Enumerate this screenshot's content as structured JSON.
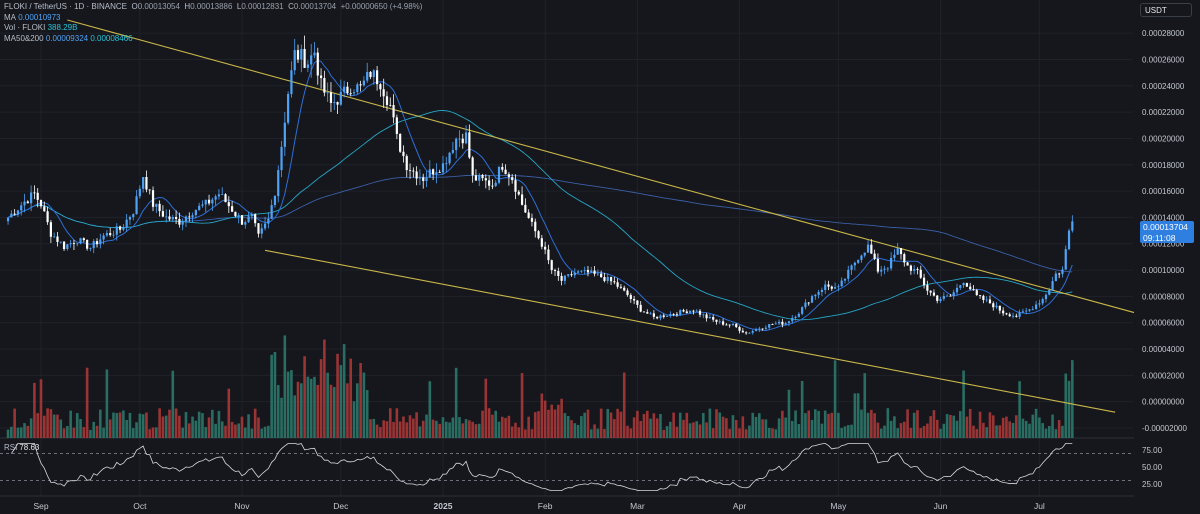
{
  "header": {
    "symbol": "FLOKI / TetherUS · 1D · BINANCE",
    "o_label": "O",
    "o_value": "0.00013054",
    "h_label": "H",
    "h_value": "0.00013886",
    "l_label": "L",
    "l_value": "0.00012831",
    "c_label": "C",
    "c_value": "0.00013704",
    "change": "+0.00000650 (+4.98%)",
    "ma_label": "MA",
    "ma_value": "0.00010973",
    "vol_label": "Vol · FLOKI",
    "vol_value": "388.29B",
    "ma50_label": "MA50&200",
    "ma50_value": "0.00009324",
    "ma200_value": "0.00008466"
  },
  "unit": "USDT",
  "price_tag": {
    "price": "0.00013704",
    "countdown": "09:11:08"
  },
  "rsi": {
    "label": "RSI",
    "value": "78.63"
  },
  "colors": {
    "up": "#4fa3f7",
    "down": "#ffffff",
    "trend": "#c9b64a",
    "ma": "#2e6fd6",
    "ma50": "#26a6c6",
    "ma200": "#3b5fa8",
    "vol_up": "#2e7d6e",
    "vol_down": "#b23a3a",
    "rsi": "#d7d9de"
  },
  "chart_data": {
    "type": "candlestick",
    "y_axis_ticks": [
      "0.00028000",
      "0.00026000",
      "0.00024000",
      "0.00022000",
      "0.00020000",
      "0.00018000",
      "0.00016000",
      "0.00014000",
      "0.00012000",
      "0.00010000",
      "0.00008000",
      "0.00006000",
      "0.00004000",
      "0.00002000",
      "0.00000000",
      "-0.00002000"
    ],
    "ylim": [
      -2e-05,
      0.00029
    ],
    "x_axis_ticks": [
      {
        "label": "Sep",
        "day": 0
      },
      {
        "label": "Oct",
        "day": 30
      },
      {
        "label": "Nov",
        "day": 61
      },
      {
        "label": "Dec",
        "day": 91
      },
      {
        "label": "2025",
        "day": 122
      },
      {
        "label": "Feb",
        "day": 153
      },
      {
        "label": "Mar",
        "day": 181
      },
      {
        "label": "Apr",
        "day": 212
      },
      {
        "label": "May",
        "day": 242
      },
      {
        "label": "Jun",
        "day": 273
      },
      {
        "label": "Jul",
        "day": 303
      }
    ],
    "price_closes": [
      [
        -10,
        0.00014
      ],
      [
        -5,
        0.000152
      ],
      [
        -2,
        0.000158
      ],
      [
        0,
        0.00015
      ],
      [
        3,
        0.000128
      ],
      [
        7,
        0.000118
      ],
      [
        11,
        0.000123
      ],
      [
        15,
        0.000117
      ],
      [
        19,
        0.000126
      ],
      [
        24,
        0.000131
      ],
      [
        28,
        0.000145
      ],
      [
        31,
        0.000172
      ],
      [
        34,
        0.00015
      ],
      [
        38,
        0.00014
      ],
      [
        42,
        0.000137
      ],
      [
        46,
        0.000145
      ],
      [
        50,
        0.00015
      ],
      [
        54,
        0.000158
      ],
      [
        58,
        0.000146
      ],
      [
        61,
        0.000137
      ],
      [
        64,
        0.00014
      ],
      [
        66,
        0.000125
      ],
      [
        69,
        0.000138
      ],
      [
        71,
        0.00016
      ],
      [
        73,
        0.000195
      ],
      [
        75,
        0.000235
      ],
      [
        77,
        0.000264
      ],
      [
        79,
        0.000262
      ],
      [
        81,
        0.000258
      ],
      [
        83,
        0.000266
      ],
      [
        85,
        0.00024
      ],
      [
        88,
        0.000226
      ],
      [
        91,
        0.000232
      ],
      [
        94,
        0.00024
      ],
      [
        97,
        0.000238
      ],
      [
        100,
        0.00025
      ],
      [
        103,
        0.000243
      ],
      [
        106,
        0.000225
      ],
      [
        108,
        0.0002
      ],
      [
        111,
        0.00018
      ],
      [
        113,
        0.000175
      ],
      [
        116,
        0.00017
      ],
      [
        119,
        0.000176
      ],
      [
        122,
        0.00018
      ],
      [
        126,
        0.0002
      ],
      [
        129,
        0.000202
      ],
      [
        131,
        0.00017
      ],
      [
        134,
        0.000168
      ],
      [
        137,
        0.000165
      ],
      [
        140,
        0.00018
      ],
      [
        143,
        0.00017
      ],
      [
        146,
        0.00015
      ],
      [
        149,
        0.000134
      ],
      [
        152,
        0.00012
      ],
      [
        155,
        0.0001
      ],
      [
        158,
        9.2e-05
      ],
      [
        162,
        9.8e-05
      ],
      [
        166,
        9.8e-05
      ],
      [
        170,
        9.5e-05
      ],
      [
        174,
        9e-05
      ],
      [
        178,
        8.1e-05
      ],
      [
        182,
        7e-05
      ],
      [
        186,
        6.4e-05
      ],
      [
        190,
        6.6e-05
      ],
      [
        194,
        6.8e-05
      ],
      [
        198,
        7e-05
      ],
      [
        202,
        6.4e-05
      ],
      [
        206,
        6e-05
      ],
      [
        210,
        5.8e-05
      ],
      [
        214,
        5.2e-05
      ],
      [
        218,
        5.6e-05
      ],
      [
        222,
        5.9e-05
      ],
      [
        226,
        6e-05
      ],
      [
        230,
        6.8e-05
      ],
      [
        234,
        8e-05
      ],
      [
        238,
        8.8e-05
      ],
      [
        242,
        8.6e-05
      ],
      [
        244,
        9.4e-05
      ],
      [
        248,
        0.00011
      ],
      [
        251,
        0.000118
      ],
      [
        254,
        0.0001
      ],
      [
        257,
        0.000103
      ],
      [
        260,
        0.000115
      ],
      [
        263,
        0.000103
      ],
      [
        266,
        9.8e-05
      ],
      [
        269,
        8.5e-05
      ],
      [
        272,
        7.8e-05
      ],
      [
        276,
        8e-05
      ],
      [
        280,
        9.2e-05
      ],
      [
        284,
        8e-05
      ],
      [
        288,
        7.5e-05
      ],
      [
        292,
        6.8e-05
      ],
      [
        296,
        6.5e-05
      ],
      [
        300,
        7e-05
      ],
      [
        304,
        7.8e-05
      ],
      [
        306,
        8.6e-05
      ],
      [
        308,
        9.7e-05
      ],
      [
        310,
        0.0001
      ],
      [
        312,
        0.00013
      ],
      [
        313,
        0.000137
      ]
    ],
    "trendlines": [
      {
        "name": "upper",
        "from": {
          "day": 8,
          "price": 0.00029
        },
        "to": {
          "day": 343,
          "price": 6e-05
        }
      },
      {
        "name": "lower",
        "from": {
          "day": 68,
          "price": 0.000115
        },
        "to": {
          "day": 326,
          "price": -8e-06
        }
      }
    ],
    "rsi_ticks": [
      "75.00",
      "50.00",
      "25.00"
    ],
    "rsi_levels": [
      70,
      30
    ],
    "grid": true
  }
}
